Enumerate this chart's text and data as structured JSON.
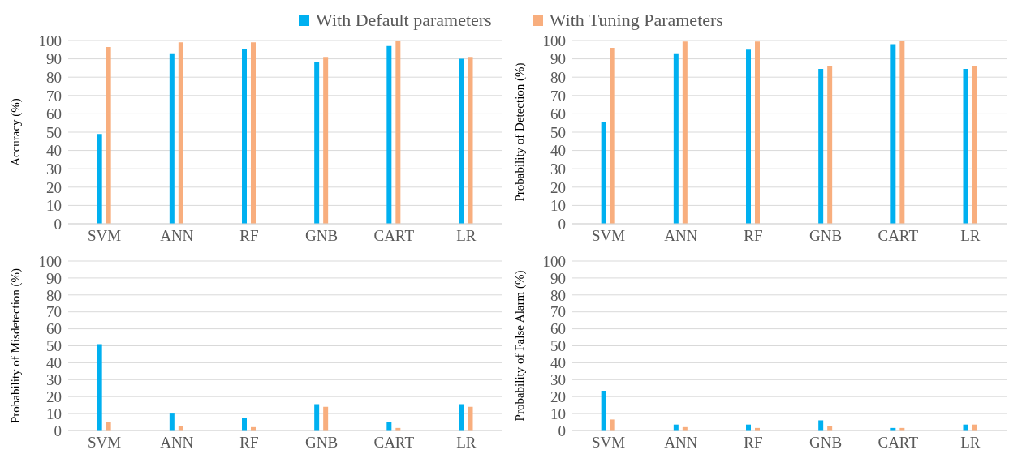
{
  "chart_data": [
    {
      "type": "bar",
      "ylabel": "Accuracy (%)",
      "categories": [
        "SVM",
        "ANN",
        "RF",
        "GNB",
        "CART",
        "LR"
      ],
      "legend": "top",
      "grid": "y",
      "ylim": [
        0,
        100
      ],
      "yticks": [
        0,
        10,
        20,
        30,
        40,
        50,
        60,
        70,
        80,
        90,
        100
      ],
      "series": [
        {
          "name": "With Default parameters",
          "color": "#00b0f0",
          "values": [
            49,
            93,
            95.5,
            88,
            97,
            90
          ]
        },
        {
          "name": "With Tuning Parameters",
          "color": "#f8ae7e",
          "values": [
            96.5,
            99,
            99,
            91,
            100,
            91
          ]
        }
      ]
    },
    {
      "type": "bar",
      "ylabel": "Probability of Detection (%)",
      "categories": [
        "SVM",
        "ANN",
        "RF",
        "GNB",
        "CART",
        "LR"
      ],
      "grid": "y",
      "ylim": [
        0,
        100
      ],
      "yticks": [
        0,
        10,
        20,
        30,
        40,
        50,
        60,
        70,
        80,
        90,
        100
      ],
      "series": [
        {
          "color": "#00b0f0",
          "values": [
            55.5,
            93,
            95,
            84.5,
            98,
            84.5
          ]
        },
        {
          "color": "#f8ae7e",
          "values": [
            96,
            99.5,
            99.5,
            86,
            100,
            86
          ]
        }
      ]
    },
    {
      "type": "bar",
      "ylabel": "Probability of Misdetection (%)",
      "categories": [
        "SVM",
        "ANN",
        "RF",
        "GNB",
        "CART",
        "LR"
      ],
      "grid": "y",
      "ylim": [
        0,
        100
      ],
      "yticks": [
        0,
        10,
        20,
        30,
        40,
        50,
        60,
        70,
        80,
        90,
        100
      ],
      "series": [
        {
          "color": "#00b0f0",
          "values": [
            51,
            10,
            7.5,
            15.5,
            5,
            15.5
          ]
        },
        {
          "color": "#f8ae7e",
          "values": [
            5,
            2.5,
            2,
            14,
            1.5,
            14
          ]
        }
      ]
    },
    {
      "type": "bar",
      "ylabel": "Probability of False Alarm (%)",
      "categories": [
        "SVM",
        "ANN",
        "RF",
        "GNB",
        "CART",
        "LR"
      ],
      "grid": "y",
      "ylim": [
        0,
        100
      ],
      "yticks": [
        0,
        10,
        20,
        30,
        40,
        50,
        60,
        70,
        80,
        90,
        100
      ],
      "series": [
        {
          "color": "#00b0f0",
          "values": [
            23.5,
            3.5,
            3.5,
            6,
            1.5,
            3.5
          ]
        },
        {
          "color": "#f8ae7e",
          "values": [
            6.5,
            2,
            1.5,
            2.5,
            1.5,
            3.5
          ]
        }
      ]
    }
  ]
}
